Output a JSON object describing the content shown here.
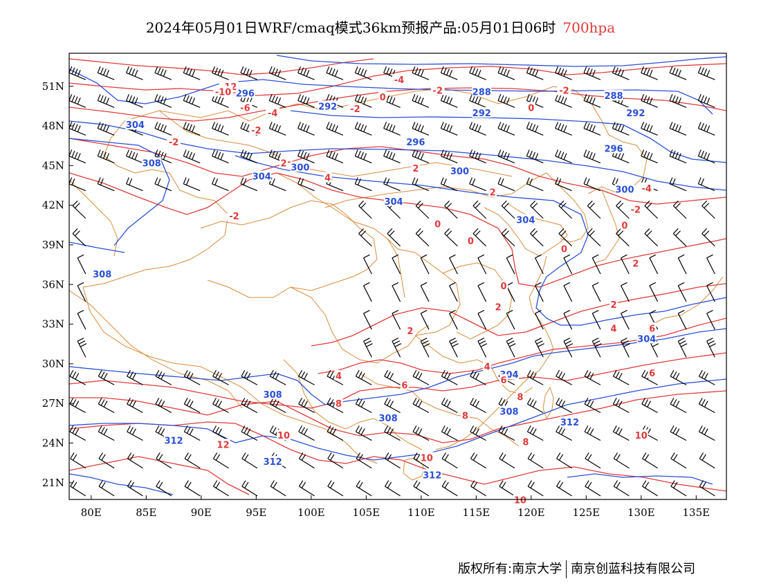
{
  "title": {
    "main": "2024年05月01日WRF/cmaq模式36km预报产品:05月01日06时",
    "level": "700hpa"
  },
  "axes": {
    "x_ticks": [
      "80E",
      "85E",
      "90E",
      "95E",
      "100E",
      "105E",
      "110E",
      "115E",
      "120E",
      "125E",
      "130E",
      "135E"
    ],
    "y_ticks": [
      "51N",
      "48N",
      "45N",
      "42N",
      "39N",
      "36N",
      "33N",
      "30N",
      "27N",
      "24N",
      "21N"
    ]
  },
  "colors": {
    "height_contour": "#2a4fd6",
    "temperature_contour": "#e03a3a",
    "boundary": "#d98b3a",
    "wind_barb": "#000000"
  },
  "height_labels": [
    {
      "text": "288",
      "lon": 115.5,
      "lat": 50.6
    },
    {
      "text": "288",
      "lon": 127.5,
      "lat": 50.3
    },
    {
      "text": "292",
      "lon": 101.5,
      "lat": 49.5
    },
    {
      "text": "292",
      "lon": 115.5,
      "lat": 49.0
    },
    {
      "text": "292",
      "lon": 129.5,
      "lat": 49.0
    },
    {
      "text": "296",
      "lon": 94.0,
      "lat": 50.5
    },
    {
      "text": "304",
      "lon": 84.0,
      "lat": 48.1
    },
    {
      "text": "296",
      "lon": 109.5,
      "lat": 46.8
    },
    {
      "text": "296",
      "lon": 127.5,
      "lat": 46.3
    },
    {
      "text": "308",
      "lon": 85.5,
      "lat": 45.2
    },
    {
      "text": "300",
      "lon": 99.0,
      "lat": 44.9
    },
    {
      "text": "300",
      "lon": 113.5,
      "lat": 44.6
    },
    {
      "text": "304",
      "lon": 95.5,
      "lat": 44.2
    },
    {
      "text": "300",
      "lon": 128.5,
      "lat": 43.2
    },
    {
      "text": "304",
      "lon": 107.5,
      "lat": 42.3
    },
    {
      "text": "304",
      "lon": 119.5,
      "lat": 40.9
    },
    {
      "text": "308",
      "lon": 81.0,
      "lat": 36.8
    },
    {
      "text": "304",
      "lon": 130.5,
      "lat": 31.9
    },
    {
      "text": "304",
      "lon": 118.0,
      "lat": 29.2
    },
    {
      "text": "308",
      "lon": 96.5,
      "lat": 27.7
    },
    {
      "text": "308",
      "lon": 107.0,
      "lat": 25.9
    },
    {
      "text": "308",
      "lon": 118.0,
      "lat": 26.4
    },
    {
      "text": "312",
      "lon": 123.5,
      "lat": 25.6
    },
    {
      "text": "312",
      "lon": 87.5,
      "lat": 24.2
    },
    {
      "text": "312",
      "lon": 96.5,
      "lat": 22.6
    },
    {
      "text": "312",
      "lon": 111.0,
      "lat": 21.6
    }
  ],
  "temperature_labels": [
    {
      "text": "-12",
      "lon": 92.5,
      "lat": 51.0
    },
    {
      "text": "-10",
      "lon": 92.0,
      "lat": 50.6
    },
    {
      "text": "-6",
      "lon": 94.0,
      "lat": 49.4
    },
    {
      "text": "-4",
      "lon": 96.5,
      "lat": 49.0
    },
    {
      "text": "-4",
      "lon": 108.0,
      "lat": 51.5
    },
    {
      "text": "-2",
      "lon": 111.5,
      "lat": 50.7
    },
    {
      "text": "-2",
      "lon": 123.0,
      "lat": 50.7
    },
    {
      "text": "-2",
      "lon": 104.0,
      "lat": 49.3
    },
    {
      "text": "0",
      "lon": 106.5,
      "lat": 50.2
    },
    {
      "text": "0",
      "lon": 120.0,
      "lat": 49.4
    },
    {
      "text": "-2",
      "lon": 95.0,
      "lat": 47.7
    },
    {
      "text": "-2",
      "lon": 87.5,
      "lat": 46.8
    },
    {
      "text": "2",
      "lon": 97.5,
      "lat": 45.2
    },
    {
      "text": "2",
      "lon": 109.5,
      "lat": 44.8
    },
    {
      "text": "4",
      "lon": 101.5,
      "lat": 44.1
    },
    {
      "text": "2",
      "lon": 116.5,
      "lat": 43.0
    },
    {
      "text": "-4",
      "lon": 130.5,
      "lat": 43.3
    },
    {
      "text": "-2",
      "lon": 129.5,
      "lat": 41.7
    },
    {
      "text": "-2",
      "lon": 93.0,
      "lat": 41.2
    },
    {
      "text": "0",
      "lon": 111.5,
      "lat": 40.6
    },
    {
      "text": "0",
      "lon": 114.5,
      "lat": 39.3
    },
    {
      "text": "0",
      "lon": 128.5,
      "lat": 40.5
    },
    {
      "text": "0",
      "lon": 123.0,
      "lat": 38.7
    },
    {
      "text": "2",
      "lon": 129.5,
      "lat": 37.6
    },
    {
      "text": "0",
      "lon": 117.5,
      "lat": 35.9
    },
    {
      "text": "2",
      "lon": 117.0,
      "lat": 34.3
    },
    {
      "text": "2",
      "lon": 127.5,
      "lat": 34.5
    },
    {
      "text": "2",
      "lon": 109.0,
      "lat": 32.5
    },
    {
      "text": "4",
      "lon": 127.5,
      "lat": 32.7
    },
    {
      "text": "6",
      "lon": 131.0,
      "lat": 32.7
    },
    {
      "text": "4",
      "lon": 116.0,
      "lat": 29.8
    },
    {
      "text": "4",
      "lon": 102.5,
      "lat": 29.1
    },
    {
      "text": "6",
      "lon": 117.5,
      "lat": 28.8
    },
    {
      "text": "6",
      "lon": 131.0,
      "lat": 29.3
    },
    {
      "text": "6",
      "lon": 108.5,
      "lat": 28.4
    },
    {
      "text": "8",
      "lon": 102.5,
      "lat": 27.0
    },
    {
      "text": "8",
      "lon": 119.0,
      "lat": 27.5
    },
    {
      "text": "8",
      "lon": 114.0,
      "lat": 26.1
    },
    {
      "text": "10",
      "lon": 97.5,
      "lat": 24.6
    },
    {
      "text": "10",
      "lon": 130.0,
      "lat": 24.6
    },
    {
      "text": "8",
      "lon": 119.5,
      "lat": 24.1
    },
    {
      "text": "12",
      "lon": 92.0,
      "lat": 23.9
    },
    {
      "text": "10",
      "lon": 110.5,
      "lat": 22.9
    },
    {
      "text": "10",
      "lon": 119.0,
      "lat": 19.7
    }
  ],
  "copyright": {
    "left": "版权所有:南京大学",
    "right": "南京创蓝科技有限公司"
  }
}
